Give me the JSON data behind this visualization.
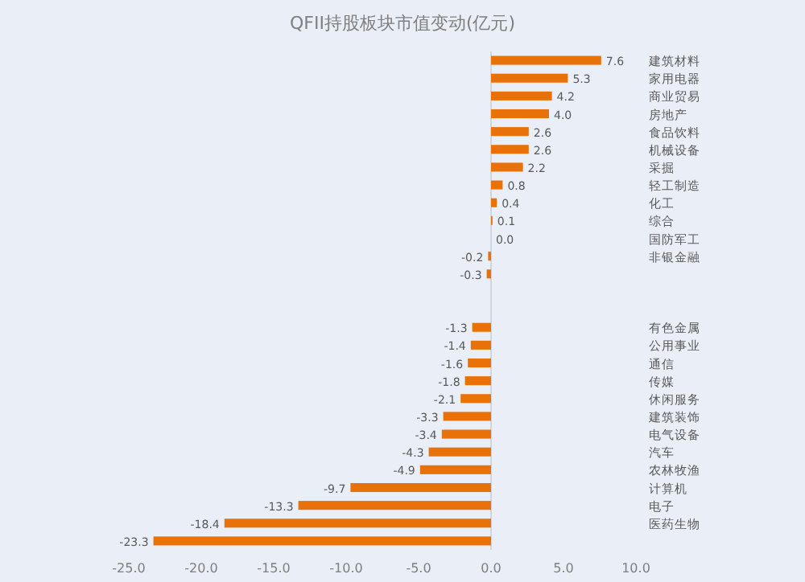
{
  "chart_data": {
    "type": "bar",
    "orientation": "horizontal",
    "title": "QFII持股板块市值变动(亿元)",
    "categories": [
      "建筑材料",
      "家用电器",
      "商业贸易",
      "房地产",
      "食品饮料",
      "机械设备",
      "采掘",
      "轻工制造",
      "化工",
      "综合",
      "国防军工",
      "非银金融",
      null,
      null,
      null,
      "有色金属",
      "公用事业",
      "通信",
      "传媒",
      "休闲服务",
      "建筑装饰",
      "电气设备",
      "汽车",
      "农林牧渔",
      "计算机",
      "电子",
      "医药生物",
      null
    ],
    "values": [
      7.6,
      5.3,
      4.2,
      4.0,
      2.6,
      2.6,
      2.2,
      0.8,
      0.4,
      0.1,
      0.0,
      -0.2,
      -0.3,
      null,
      null,
      -1.3,
      -1.4,
      -1.6,
      -1.8,
      -2.1,
      -3.3,
      -3.4,
      -4.3,
      -4.9,
      -9.7,
      -13.3,
      -18.4,
      -23.3
    ],
    "value_labels": [
      "7.6",
      "5.3",
      "4.2",
      "4.0",
      "2.6",
      "2.6",
      "2.2",
      "0.8",
      "0.4",
      "0.1",
      "0.0",
      "-0.2",
      "-0.3",
      null,
      null,
      "-1.3",
      "-1.4",
      "-1.6",
      "-1.8",
      "-2.1",
      "-3.3",
      "-3.4",
      "-4.3",
      "-4.9",
      "-9.7",
      "-13.3",
      "-18.4",
      "-23.3"
    ],
    "color": "#e8710a",
    "xlim": [
      -25,
      10
    ],
    "xticks": [
      {
        "value": -25,
        "label": "-25.0"
      },
      {
        "value": -20,
        "label": "-20.0"
      },
      {
        "value": -15,
        "label": "-15.0"
      },
      {
        "value": -10,
        "label": "-10.0"
      },
      {
        "value": -5,
        "label": "-5.0"
      },
      {
        "value": 0,
        "label": "0.0"
      },
      {
        "value": 5,
        "label": "5.0"
      },
      {
        "value": 10,
        "label": "10.0"
      }
    ]
  }
}
